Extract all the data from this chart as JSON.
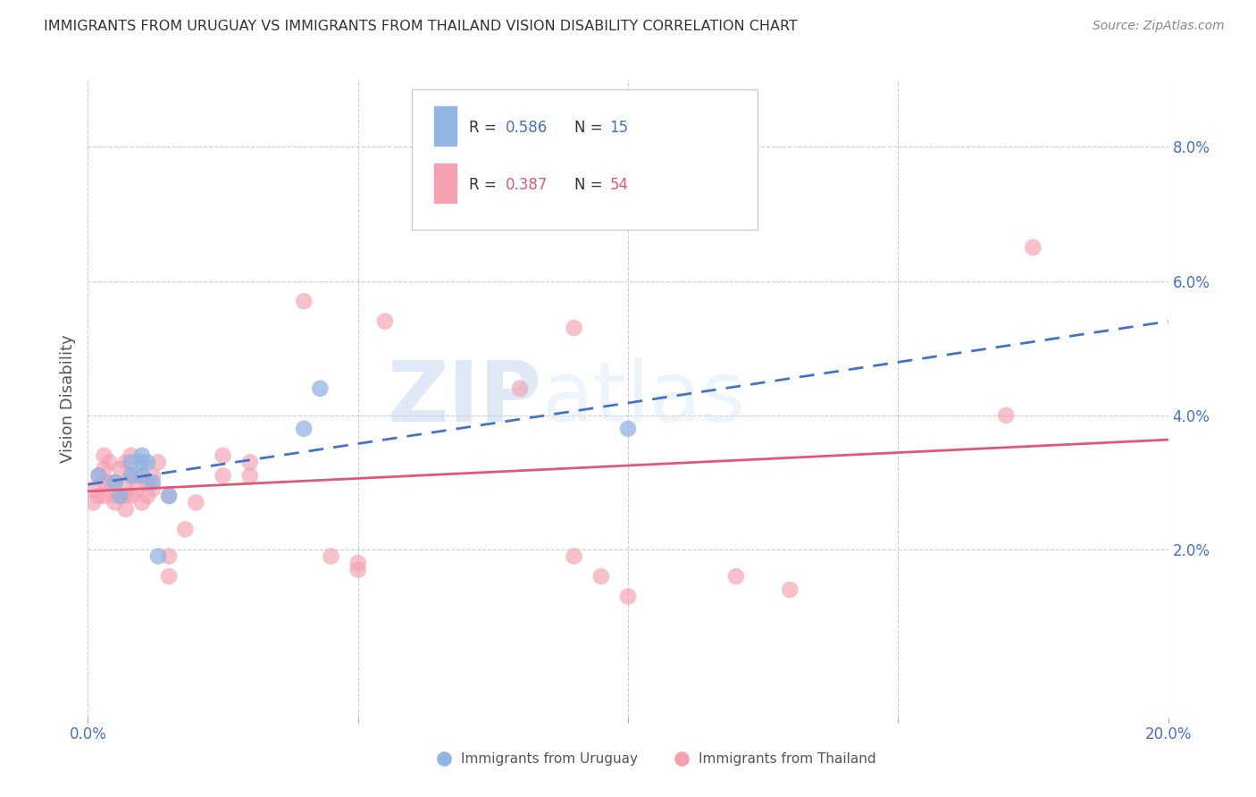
{
  "title": "IMMIGRANTS FROM URUGUAY VS IMMIGRANTS FROM THAILAND VISION DISABILITY CORRELATION CHART",
  "source": "Source: ZipAtlas.com",
  "ylabel": "Vision Disability",
  "xlim": [
    0.0,
    0.2
  ],
  "ylim": [
    -0.005,
    0.09
  ],
  "yticks": [
    0.02,
    0.04,
    0.06,
    0.08
  ],
  "xticks": [
    0.0,
    0.05,
    0.1,
    0.15,
    0.2
  ],
  "ytick_labels": [
    "2.0%",
    "4.0%",
    "6.0%",
    "8.0%"
  ],
  "watermark_zip": "ZIP",
  "watermark_atlas": "atlas",
  "legend_r_uruguay": "R = 0.586",
  "legend_n_uruguay": "N = 15",
  "legend_r_thailand": "R = 0.387",
  "legend_n_thailand": "N = 54",
  "legend_label_uruguay": "Immigrants from Uruguay",
  "legend_label_thailand": "Immigrants from Thailand",
  "uruguay_color": "#92b4e3",
  "thailand_color": "#f4a0b0",
  "uruguay_line_color": "#4472c4",
  "thailand_line_color": "#e05878",
  "uruguay_points": [
    [
      0.002,
      0.031
    ],
    [
      0.005,
      0.03
    ],
    [
      0.006,
      0.028
    ],
    [
      0.008,
      0.031
    ],
    [
      0.008,
      0.033
    ],
    [
      0.01,
      0.031
    ],
    [
      0.01,
      0.033
    ],
    [
      0.01,
      0.034
    ],
    [
      0.011,
      0.033
    ],
    [
      0.012,
      0.03
    ],
    [
      0.013,
      0.019
    ],
    [
      0.015,
      0.028
    ],
    [
      0.04,
      0.038
    ],
    [
      0.043,
      0.044
    ],
    [
      0.1,
      0.038
    ]
  ],
  "thailand_points": [
    [
      0.001,
      0.029
    ],
    [
      0.001,
      0.027
    ],
    [
      0.002,
      0.031
    ],
    [
      0.002,
      0.028
    ],
    [
      0.003,
      0.034
    ],
    [
      0.003,
      0.032
    ],
    [
      0.003,
      0.028
    ],
    [
      0.003,
      0.03
    ],
    [
      0.004,
      0.033
    ],
    [
      0.004,
      0.03
    ],
    [
      0.005,
      0.03
    ],
    [
      0.005,
      0.027
    ],
    [
      0.005,
      0.028
    ],
    [
      0.006,
      0.032
    ],
    [
      0.006,
      0.028
    ],
    [
      0.007,
      0.033
    ],
    [
      0.007,
      0.03
    ],
    [
      0.007,
      0.028
    ],
    [
      0.007,
      0.026
    ],
    [
      0.008,
      0.034
    ],
    [
      0.008,
      0.031
    ],
    [
      0.008,
      0.028
    ],
    [
      0.009,
      0.031
    ],
    [
      0.009,
      0.029
    ],
    [
      0.01,
      0.031
    ],
    [
      0.01,
      0.027
    ],
    [
      0.011,
      0.03
    ],
    [
      0.011,
      0.028
    ],
    [
      0.012,
      0.031
    ],
    [
      0.012,
      0.029
    ],
    [
      0.013,
      0.033
    ],
    [
      0.015,
      0.028
    ],
    [
      0.015,
      0.019
    ],
    [
      0.015,
      0.016
    ],
    [
      0.018,
      0.023
    ],
    [
      0.02,
      0.027
    ],
    [
      0.025,
      0.031
    ],
    [
      0.025,
      0.034
    ],
    [
      0.03,
      0.031
    ],
    [
      0.03,
      0.033
    ],
    [
      0.04,
      0.057
    ],
    [
      0.045,
      0.019
    ],
    [
      0.05,
      0.018
    ],
    [
      0.05,
      0.017
    ],
    [
      0.055,
      0.054
    ],
    [
      0.08,
      0.044
    ],
    [
      0.09,
      0.053
    ],
    [
      0.09,
      0.019
    ],
    [
      0.095,
      0.016
    ],
    [
      0.1,
      0.013
    ],
    [
      0.12,
      0.016
    ],
    [
      0.13,
      0.014
    ],
    [
      0.17,
      0.04
    ],
    [
      0.175,
      0.065
    ]
  ],
  "background_color": "#ffffff",
  "grid_color": "#cccccc",
  "title_color": "#333333",
  "tick_color": "#4472c4",
  "r_value_color": "#4472c4",
  "n_value_color": "#4472c4"
}
